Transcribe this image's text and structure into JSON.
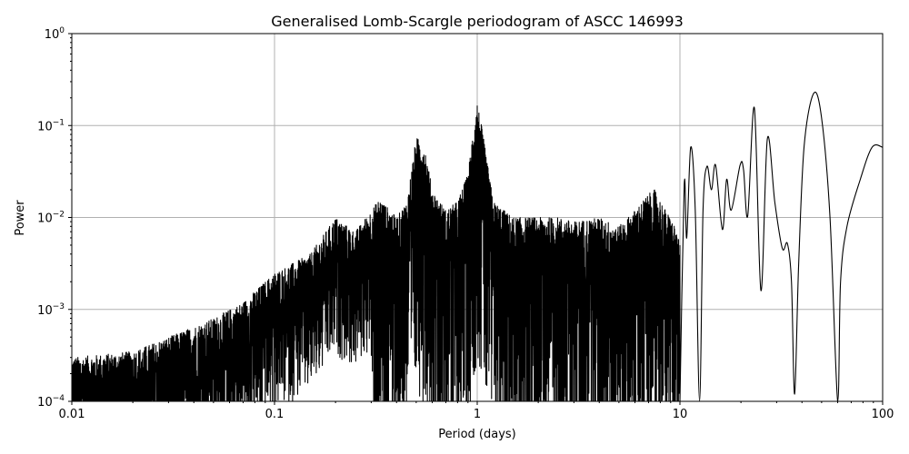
{
  "chart_data": {
    "type": "line",
    "title": "Generalised Lomb-Scargle periodogram of ASCC 146993",
    "xlabel": "Period (days)",
    "ylabel": "Power",
    "xscale": "log",
    "yscale": "log",
    "xlim": [
      0.01,
      100
    ],
    "ylim": [
      0.0001,
      1
    ],
    "grid": true,
    "line_color": "#000000",
    "grid_color": "#b0b0b0",
    "x_ticks": [
      {
        "value": 0.01,
        "label": "0.01"
      },
      {
        "value": 0.1,
        "label": "0.1"
      },
      {
        "value": 1,
        "label": "1"
      },
      {
        "value": 10,
        "label": "10"
      },
      {
        "value": 100,
        "label": "100"
      }
    ],
    "y_ticks": [
      {
        "value": 0.0001,
        "base": "10",
        "exp": "−4"
      },
      {
        "value": 0.001,
        "base": "10",
        "exp": "−3"
      },
      {
        "value": 0.01,
        "base": "10",
        "exp": "−2"
      },
      {
        "value": 0.1,
        "base": "10",
        "exp": "−1"
      },
      {
        "value": 1,
        "base": "10",
        "exp": "0"
      }
    ],
    "noisy_region_peak_envelope": {
      "period": [
        0.01,
        0.02,
        0.03,
        0.05,
        0.07,
        0.1,
        0.15,
        0.2,
        0.25,
        0.33,
        0.4,
        0.45,
        0.5,
        0.55,
        0.6,
        0.7,
        0.8,
        0.9,
        0.97,
        1.0,
        1.05,
        1.2,
        1.5,
        2.0,
        2.5,
        3.0,
        4.0,
        5.0,
        6.0,
        7.0,
        7.5,
        8.5,
        9.5,
        10
      ],
      "power": [
        0.0003,
        0.00035,
        0.0005,
        0.0008,
        0.0012,
        0.0025,
        0.004,
        0.01,
        0.007,
        0.016,
        0.01,
        0.015,
        0.075,
        0.06,
        0.02,
        0.012,
        0.015,
        0.03,
        0.12,
        0.18,
        0.1,
        0.015,
        0.01,
        0.01,
        0.01,
        0.009,
        0.01,
        0.008,
        0.012,
        0.018,
        0.02,
        0.012,
        0.008,
        0.005
      ]
    },
    "long_period_curve": {
      "period": [
        10,
        10.5,
        10.8,
        11.3,
        11.9,
        12.5,
        13.0,
        13.6,
        14.3,
        15.0,
        16.2,
        17.0,
        17.9,
        19.8,
        20.6,
        21.6,
        23.3,
        25.1,
        27.0,
        29.4,
        32.0,
        33.9,
        35.5,
        36.8,
        38.5,
        41,
        45.7,
        50,
        55,
        60,
        62,
        66.7,
        77.6,
        88.7,
        100
      ],
      "power": [
        0.0001,
        0.023,
        0.006,
        0.058,
        0.012,
        0.0001,
        0.012,
        0.036,
        0.02,
        0.037,
        0.0074,
        0.026,
        0.012,
        0.037,
        0.033,
        0.0104,
        0.155,
        0.0016,
        0.072,
        0.0145,
        0.0046,
        0.0052,
        0.002,
        0.00012,
        0.003,
        0.06,
        0.224,
        0.12,
        0.01,
        0.0001,
        0.002,
        0.008,
        0.026,
        0.058,
        0.058
      ]
    }
  }
}
